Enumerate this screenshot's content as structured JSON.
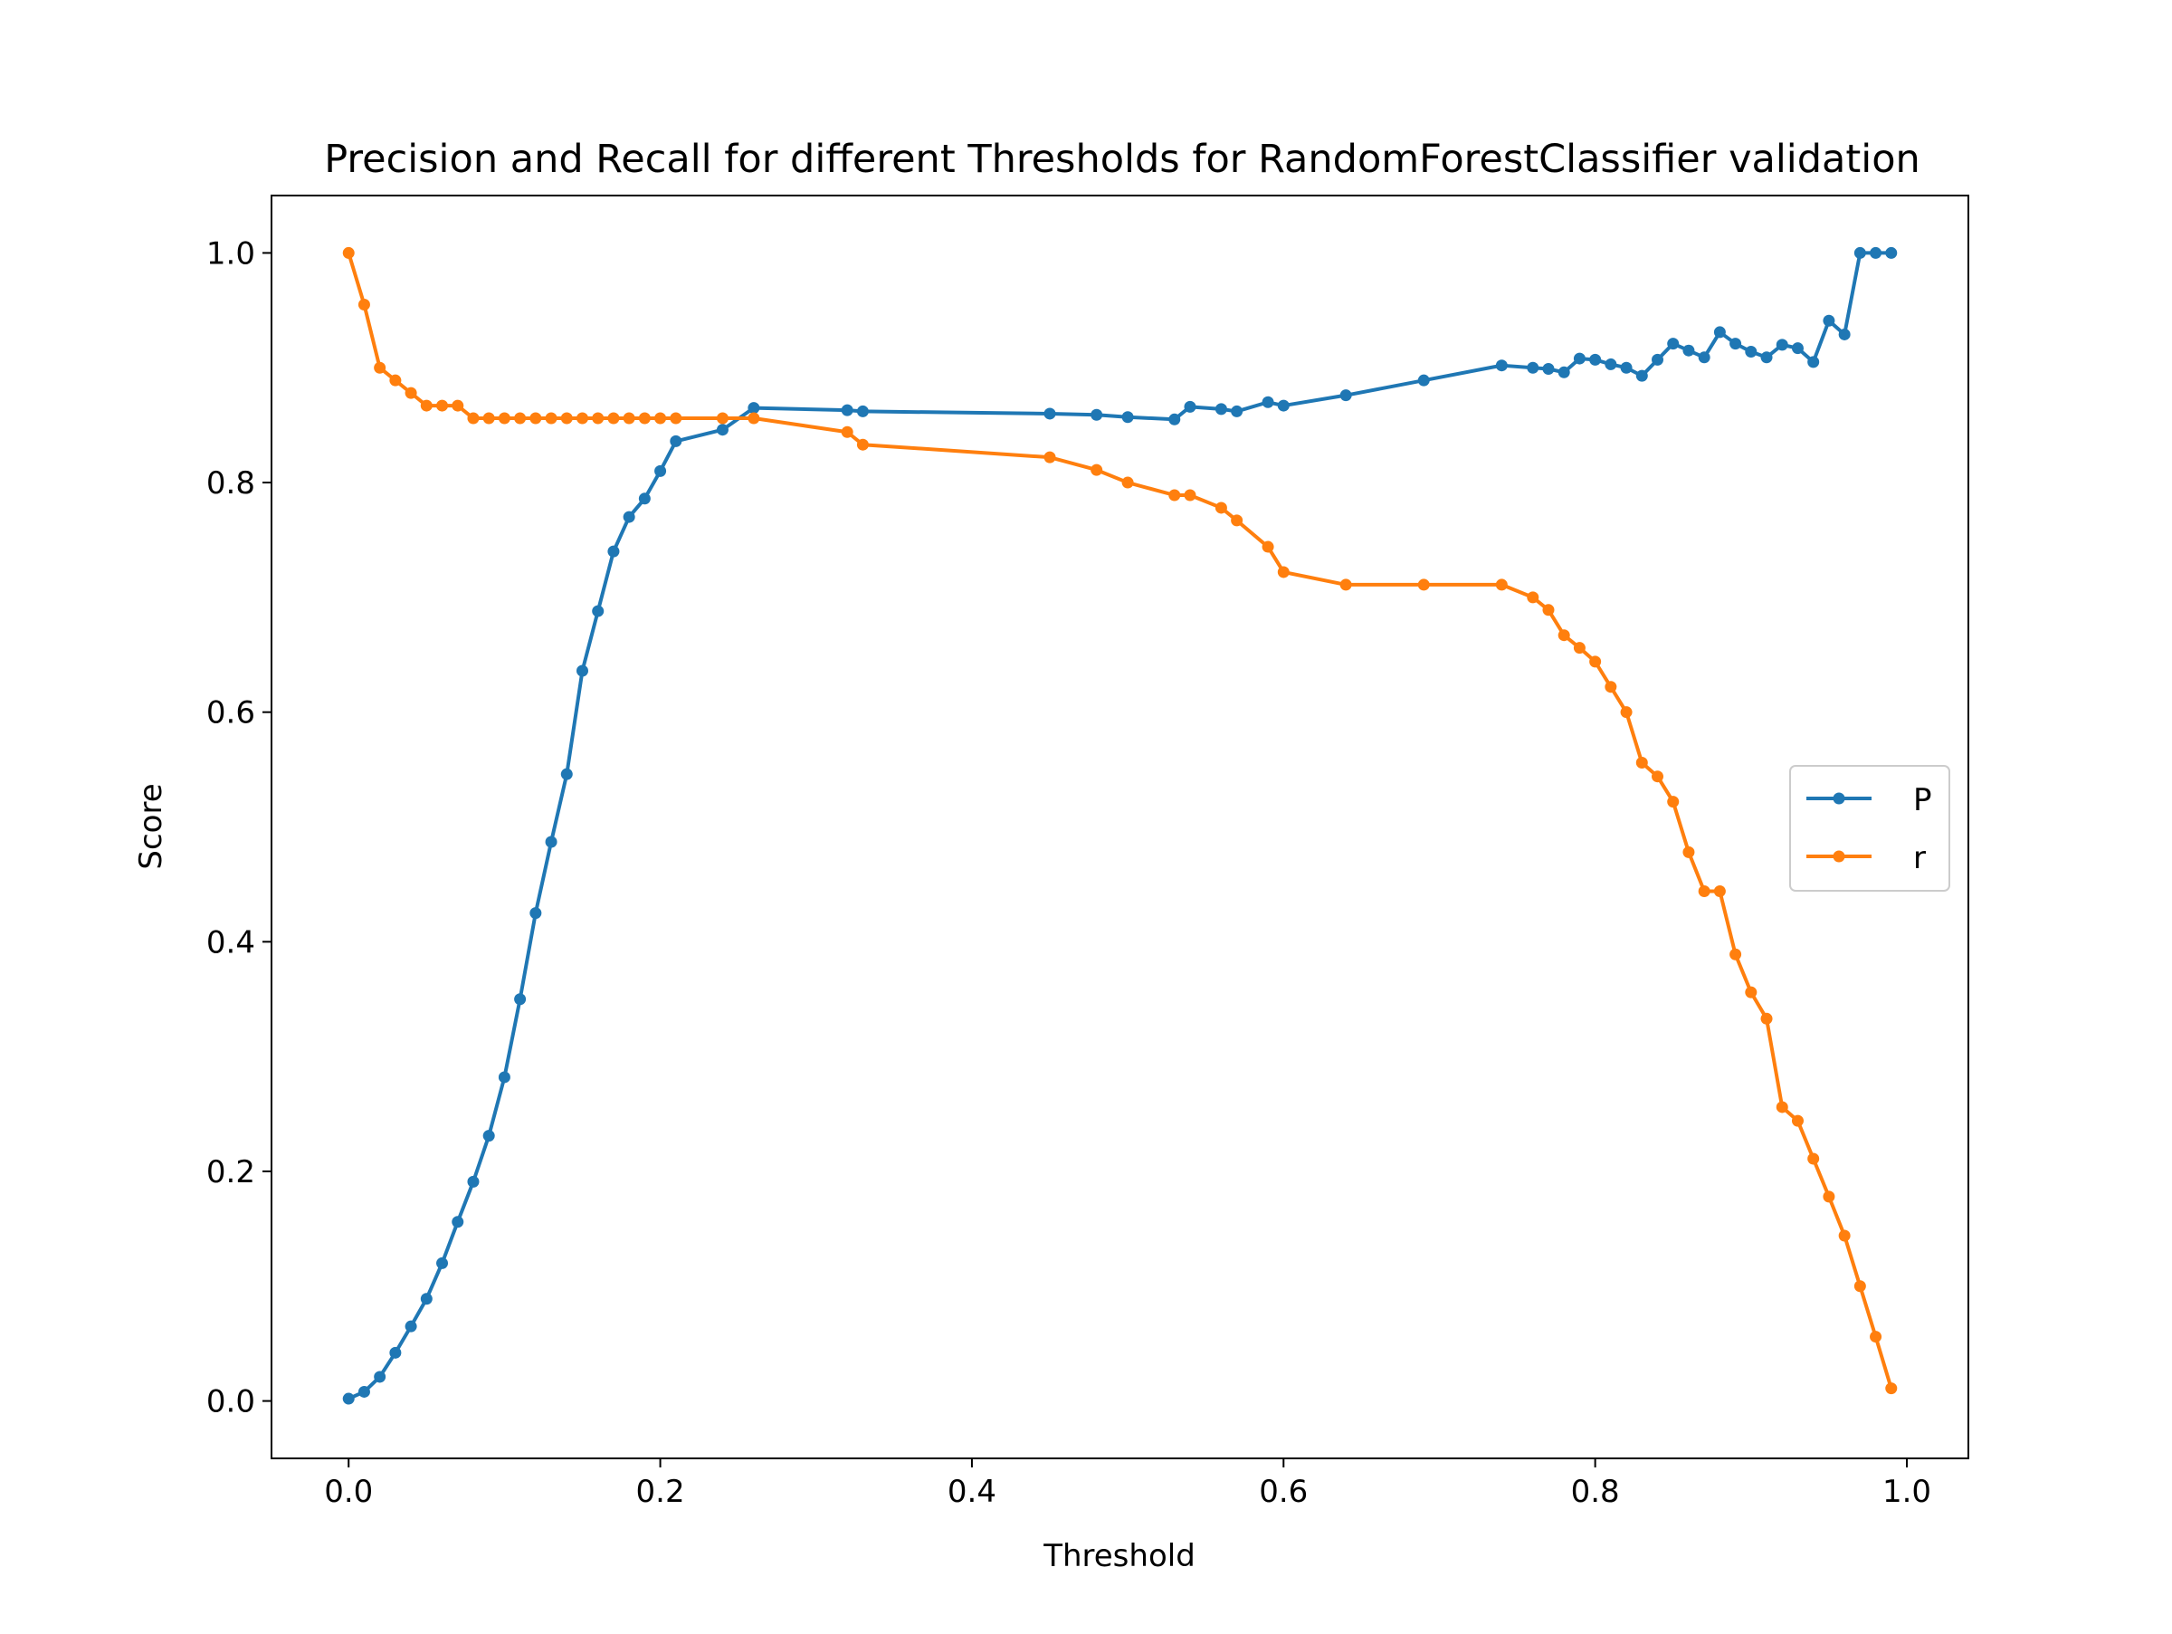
{
  "chart_data": {
    "type": "line",
    "title": "Precision and Recall for different Thresholds for RandomForestClassifier validation",
    "xlabel": "Threshold",
    "ylabel": "Score",
    "xlim": [
      -0.0495,
      1.0395
    ],
    "ylim": [
      -0.05,
      1.05
    ],
    "xticks": [
      0.0,
      0.2,
      0.4,
      0.6,
      0.8,
      1.0
    ],
    "xtick_labels": [
      "0.0",
      "0.2",
      "0.4",
      "0.6",
      "0.8",
      "1.0"
    ],
    "yticks": [
      0.0,
      0.2,
      0.4,
      0.6,
      0.8,
      1.0
    ],
    "ytick_labels": [
      "0.0",
      "0.2",
      "0.4",
      "0.6",
      "0.8",
      "1.0"
    ],
    "grid": false,
    "legend_position": "center-right",
    "series": [
      {
        "name": "P",
        "color": "#1f77b4",
        "marker": "circle",
        "points": [
          [
            0.0,
            0.002
          ],
          [
            0.01,
            0.008
          ],
          [
            0.02,
            0.021
          ],
          [
            0.03,
            0.042
          ],
          [
            0.04,
            0.065
          ],
          [
            0.05,
            0.089
          ],
          [
            0.06,
            0.12
          ],
          [
            0.07,
            0.156
          ],
          [
            0.08,
            0.191
          ],
          [
            0.09,
            0.231
          ],
          [
            0.1,
            0.282
          ],
          [
            0.11,
            0.35
          ],
          [
            0.12,
            0.425
          ],
          [
            0.13,
            0.487
          ],
          [
            0.14,
            0.546
          ],
          [
            0.15,
            0.636
          ],
          [
            0.16,
            0.688
          ],
          [
            0.17,
            0.74
          ],
          [
            0.18,
            0.77
          ],
          [
            0.19,
            0.786
          ],
          [
            0.2,
            0.81
          ],
          [
            0.21,
            0.836
          ],
          [
            0.24,
            0.846
          ],
          [
            0.26,
            0.865
          ],
          [
            0.32,
            0.863
          ],
          [
            0.33,
            0.862
          ],
          [
            0.45,
            0.86
          ],
          [
            0.48,
            0.859
          ],
          [
            0.5,
            0.857
          ],
          [
            0.53,
            0.855
          ],
          [
            0.54,
            0.866
          ],
          [
            0.56,
            0.864
          ],
          [
            0.57,
            0.862
          ],
          [
            0.59,
            0.87
          ],
          [
            0.6,
            0.867
          ],
          [
            0.64,
            0.876
          ],
          [
            0.69,
            0.889
          ],
          [
            0.74,
            0.902
          ],
          [
            0.76,
            0.9
          ],
          [
            0.77,
            0.899
          ],
          [
            0.78,
            0.896
          ],
          [
            0.79,
            0.908
          ],
          [
            0.8,
            0.907
          ],
          [
            0.81,
            0.903
          ],
          [
            0.82,
            0.9
          ],
          [
            0.83,
            0.893
          ],
          [
            0.84,
            0.907
          ],
          [
            0.85,
            0.921
          ],
          [
            0.86,
            0.915
          ],
          [
            0.87,
            0.909
          ],
          [
            0.88,
            0.931
          ],
          [
            0.89,
            0.921
          ],
          [
            0.9,
            0.914
          ],
          [
            0.91,
            0.909
          ],
          [
            0.92,
            0.92
          ],
          [
            0.93,
            0.917
          ],
          [
            0.94,
            0.905
          ],
          [
            0.95,
            0.941
          ],
          [
            0.96,
            0.929
          ],
          [
            0.97,
            1.0
          ],
          [
            0.98,
            1.0
          ],
          [
            0.99,
            1.0
          ]
        ]
      },
      {
        "name": "r",
        "color": "#ff7f0e",
        "marker": "circle",
        "points": [
          [
            0.0,
            1.0
          ],
          [
            0.01,
            0.955
          ],
          [
            0.02,
            0.9
          ],
          [
            0.03,
            0.889
          ],
          [
            0.04,
            0.878
          ],
          [
            0.05,
            0.867
          ],
          [
            0.06,
            0.867
          ],
          [
            0.07,
            0.867
          ],
          [
            0.08,
            0.856
          ],
          [
            0.09,
            0.856
          ],
          [
            0.1,
            0.856
          ],
          [
            0.11,
            0.856
          ],
          [
            0.12,
            0.856
          ],
          [
            0.13,
            0.856
          ],
          [
            0.14,
            0.856
          ],
          [
            0.15,
            0.856
          ],
          [
            0.16,
            0.856
          ],
          [
            0.17,
            0.856
          ],
          [
            0.18,
            0.856
          ],
          [
            0.19,
            0.856
          ],
          [
            0.2,
            0.856
          ],
          [
            0.21,
            0.856
          ],
          [
            0.24,
            0.856
          ],
          [
            0.26,
            0.856
          ],
          [
            0.32,
            0.844
          ],
          [
            0.33,
            0.833
          ],
          [
            0.45,
            0.822
          ],
          [
            0.48,
            0.811
          ],
          [
            0.5,
            0.8
          ],
          [
            0.53,
            0.789
          ],
          [
            0.54,
            0.789
          ],
          [
            0.56,
            0.778
          ],
          [
            0.57,
            0.767
          ],
          [
            0.59,
            0.744
          ],
          [
            0.6,
            0.722
          ],
          [
            0.64,
            0.711
          ],
          [
            0.69,
            0.711
          ],
          [
            0.74,
            0.711
          ],
          [
            0.76,
            0.7
          ],
          [
            0.77,
            0.689
          ],
          [
            0.78,
            0.667
          ],
          [
            0.79,
            0.656
          ],
          [
            0.8,
            0.644
          ],
          [
            0.81,
            0.622
          ],
          [
            0.82,
            0.6
          ],
          [
            0.83,
            0.556
          ],
          [
            0.84,
            0.544
          ],
          [
            0.85,
            0.522
          ],
          [
            0.86,
            0.478
          ],
          [
            0.87,
            0.444
          ],
          [
            0.88,
            0.444
          ],
          [
            0.89,
            0.389
          ],
          [
            0.9,
            0.356
          ],
          [
            0.91,
            0.333
          ],
          [
            0.92,
            0.256
          ],
          [
            0.93,
            0.244
          ],
          [
            0.94,
            0.211
          ],
          [
            0.95,
            0.178
          ],
          [
            0.96,
            0.144
          ],
          [
            0.97,
            0.1
          ],
          [
            0.98,
            0.056
          ],
          [
            0.99,
            0.011
          ]
        ]
      }
    ]
  }
}
